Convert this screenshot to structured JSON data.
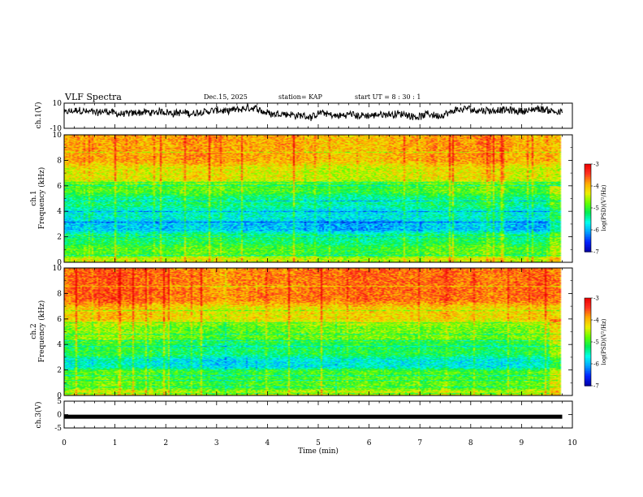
{
  "header": {
    "title": "VLF Spectra",
    "date": "Dec.15, 2025",
    "station": "station= KAP",
    "start_ut": "start  UT =   8  : 30 : 1"
  },
  "colors": {
    "trace": "#000000",
    "spectrogram_palette": [
      "#0000aa",
      "#0022ff",
      "#00a0ff",
      "#00ffee",
      "#00ee55",
      "#66ff00",
      "#eeee00",
      "#ffaa00",
      "#ff3322",
      "#ee0000"
    ]
  },
  "chart_data": [
    {
      "id": "ch1-waveform",
      "type": "line",
      "ylabel": "ch.1(V)",
      "ylim": [
        -10,
        10
      ],
      "yticks": [
        "10",
        "-10"
      ],
      "x_range_min": [
        0,
        9.8
      ],
      "description_of_series": "noisy broadband voltage trace fluctuating about 0 to +5 V"
    },
    {
      "id": "ch1-spectrogram",
      "type": "heatmap",
      "ylabel": "ch.1\nFrequency (kHz)",
      "ylim": [
        0,
        10
      ],
      "yticks": [
        "0",
        "2",
        "4",
        "6",
        "8",
        "10"
      ],
      "colorbar": {
        "label": "log(PSD)(V²/Hz)",
        "min": -7,
        "max": -3,
        "ticks": [
          "-3",
          "-4",
          "-5",
          "-6",
          "-7"
        ]
      },
      "band_levels_by_kHz": [
        {
          "from": 0,
          "to": 0.5,
          "value": -4.4
        },
        {
          "from": 0.5,
          "to": 1.5,
          "value": -4.9
        },
        {
          "from": 1.5,
          "to": 2.5,
          "value": -5.2
        },
        {
          "from": 2.5,
          "to": 3.5,
          "value": -5.9
        },
        {
          "from": 3.5,
          "to": 4.5,
          "value": -5.6
        },
        {
          "from": 4.5,
          "to": 5.5,
          "value": -5.3
        },
        {
          "from": 5.5,
          "to": 6.5,
          "value": -4.9
        },
        {
          "from": 6.5,
          "to": 8,
          "value": -4.3
        },
        {
          "from": 8,
          "to": 10,
          "value": -3.9
        }
      ]
    },
    {
      "id": "ch2-spectrogram",
      "type": "heatmap",
      "ylabel": "ch.2\nFrequency (kHz)",
      "ylim": [
        0,
        10
      ],
      "yticks": [
        "0",
        "2",
        "4",
        "6",
        "8",
        "10"
      ],
      "colorbar": {
        "label": "log(PSD)(V²/Hz)",
        "min": -7,
        "max": -3,
        "ticks": [
          "-3",
          "-4",
          "-5",
          "-6",
          "-7"
        ]
      },
      "band_levels_by_kHz": [
        {
          "from": 0,
          "to": 0.5,
          "value": -4.5
        },
        {
          "from": 0.5,
          "to": 1.5,
          "value": -4.9
        },
        {
          "from": 1.5,
          "to": 2.2,
          "value": -5.0
        },
        {
          "from": 2.2,
          "to": 3.2,
          "value": -5.7
        },
        {
          "from": 3.2,
          "to": 4.5,
          "value": -5.2
        },
        {
          "from": 4.5,
          "to": 6,
          "value": -4.8
        },
        {
          "from": 6,
          "to": 7.5,
          "value": -4.2
        },
        {
          "from": 7.5,
          "to": 10,
          "value": -3.7
        }
      ]
    },
    {
      "id": "ch3-waveform",
      "type": "line",
      "ylabel": "ch.3(V)",
      "ylim": [
        -5,
        5
      ],
      "yticks": [
        "5",
        "0",
        "-5"
      ],
      "level_approx": -0.8
    }
  ],
  "time_axis": {
    "label": "Time  (min)",
    "range": [
      0,
      10
    ],
    "ticks": [
      "0",
      "1",
      "2",
      "3",
      "4",
      "5",
      "6",
      "7",
      "8",
      "9",
      "10"
    ],
    "data_end_min": 9.8
  }
}
